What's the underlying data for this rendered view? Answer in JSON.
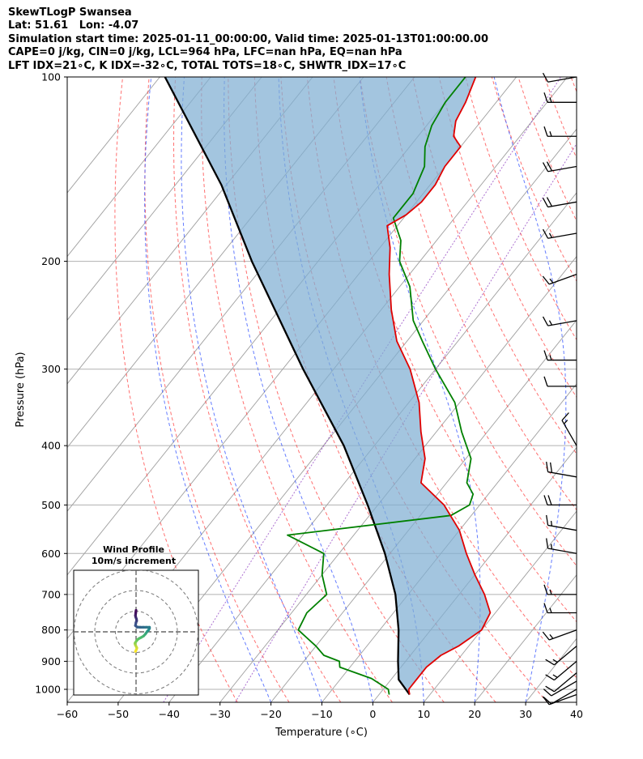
{
  "header": {
    "lines": [
      "SkewTLogP Swansea",
      "Lat: 51.61   Lon: -4.07",
      "Simulation start time: 2025-01-11_00:00:00, Valid time: 2025-01-13T01:00:00.00",
      "CAPE=0 j/kg, CIN=0 j/kg, LCL=964 hPa, LFC=nan hPa, EQ=nan hPa",
      "LFT IDX=21∘C, K IDX=-32∘C, TOTAL TOTS=18∘C, SHWTR_IDX=17∘C"
    ]
  },
  "colors": {
    "temperature": "#e00000",
    "dewpoint": "#008000",
    "parcel": "#000000",
    "cape_fill": "#7fafd3",
    "dry_adiabat": "#ff4040",
    "moist_adiabat": "#3050ff",
    "mixing_ratio": "#9040c0",
    "isotherm": "#a0a0a0",
    "grid": "#b0b0b0"
  },
  "chart_data": {
    "type": "line",
    "subtype": "skew-T log-P",
    "xlabel": "Temperature (∘C)",
    "ylabel": "Pressure (hPa)",
    "xlim": [
      -60,
      40
    ],
    "ylim": [
      1050,
      100
    ],
    "y_scale": "log",
    "grid": true,
    "x_ticks": [
      "−60",
      "−50",
      "−40",
      "−30",
      "−20",
      "−10",
      "0",
      "10",
      "20",
      "30",
      "40"
    ],
    "y_ticks": [
      "100",
      "200",
      "300",
      "400",
      "500",
      "600",
      "700",
      "800",
      "900",
      "1000"
    ],
    "series": [
      {
        "key": "temperature",
        "p": [
          1020,
          1000,
          960,
          920,
          880,
          850,
          800,
          750,
          700,
          650,
          600,
          550,
          500,
          460,
          420,
          380,
          340,
          300,
          270,
          240,
          210,
          190,
          175,
          168,
          160,
          150,
          140,
          130,
          125,
          118,
          110,
          100
        ],
        "values": [
          6,
          5,
          5,
          5,
          6,
          8,
          10,
          9,
          5,
          0,
          -5,
          -10,
          -17,
          -25,
          -28,
          -33,
          -38,
          -45,
          -52,
          -58,
          -64,
          -68,
          -72,
          -70,
          -69,
          -69,
          -70,
          -70,
          -73,
          -75,
          -76,
          -78
        ]
      },
      {
        "key": "dewpoint",
        "p": [
          1020,
          1000,
          960,
          920,
          900,
          880,
          850,
          800,
          750,
          700,
          650,
          600,
          560,
          520,
          500,
          480,
          460,
          420,
          380,
          340,
          300,
          270,
          250,
          220,
          200,
          185,
          170,
          155,
          140,
          130,
          120,
          110,
          100
        ],
        "values": [
          2,
          1,
          -4,
          -12,
          -13,
          -17,
          -20,
          -26,
          -27,
          -26,
          -30,
          -33,
          -43,
          -14,
          -12,
          -13,
          -16,
          -19,
          -25,
          -31,
          -40,
          -47,
          -52,
          -58,
          -64,
          -67,
          -72,
          -72,
          -74,
          -77,
          -79,
          -80,
          -80
        ]
      },
      {
        "key": "parcel",
        "p": [
          1020,
          964,
          900,
          800,
          700,
          600,
          500,
          400,
          300,
          200,
          150,
          100
        ],
        "values": [
          6,
          1.5,
          -1.5,
          -6.3,
          -12.5,
          -21,
          -32,
          -46,
          -66,
          -93,
          -111,
          -139
        ]
      }
    ],
    "wind_barbs": {
      "p": [
        1020,
        1000,
        970,
        940,
        900,
        850,
        800,
        750,
        700,
        600,
        550,
        500,
        450,
        400,
        320,
        290,
        250,
        210,
        180,
        160,
        140,
        125,
        110,
        100
      ],
      "speed_kt": [
        10,
        10,
        10,
        10,
        15,
        15,
        15,
        15,
        15,
        15,
        15,
        20,
        20,
        15,
        10,
        15,
        15,
        15,
        15,
        20,
        20,
        15,
        15,
        10
      ],
      "dir_deg": [
        250,
        240,
        240,
        230,
        230,
        230,
        250,
        270,
        270,
        280,
        280,
        270,
        280,
        330,
        270,
        270,
        260,
        250,
        260,
        260,
        260,
        270,
        270,
        260
      ]
    },
    "hodograph": {
      "title": "Wind Profile",
      "subtitle": "10m/s increment",
      "rings": [
        10,
        20,
        30
      ],
      "u": [
        -0.3,
        0.2,
        0.4,
        0.0,
        -0.4,
        -0.5,
        -0.2,
        0.3,
        0.8,
        1.5,
        2.5,
        3.7,
        4.5,
        5.0,
        5.5,
        6.0,
        6.3,
        6.5,
        6.5,
        5.0,
        3.5,
        2.0,
        0.5,
        -0.3,
        0.0,
        0.3,
        0.2,
        -0.1,
        -0.3,
        -0.2,
        -0.1,
        0.0
      ],
      "v": [
        -9.5,
        -8.5,
        -7.8,
        -7.0,
        -6.2,
        -5.5,
        -5.0,
        -4.3,
        -3.7,
        -3.2,
        -2.7,
        -2.0,
        -1.1,
        -0.4,
        0.3,
        0.8,
        1.3,
        1.7,
        2.2,
        2.2,
        2.2,
        2.2,
        2.3,
        3.0,
        4.6,
        5.3,
        6.2,
        7.0,
        7.8,
        8.7,
        9.5,
        10.4
      ]
    }
  }
}
